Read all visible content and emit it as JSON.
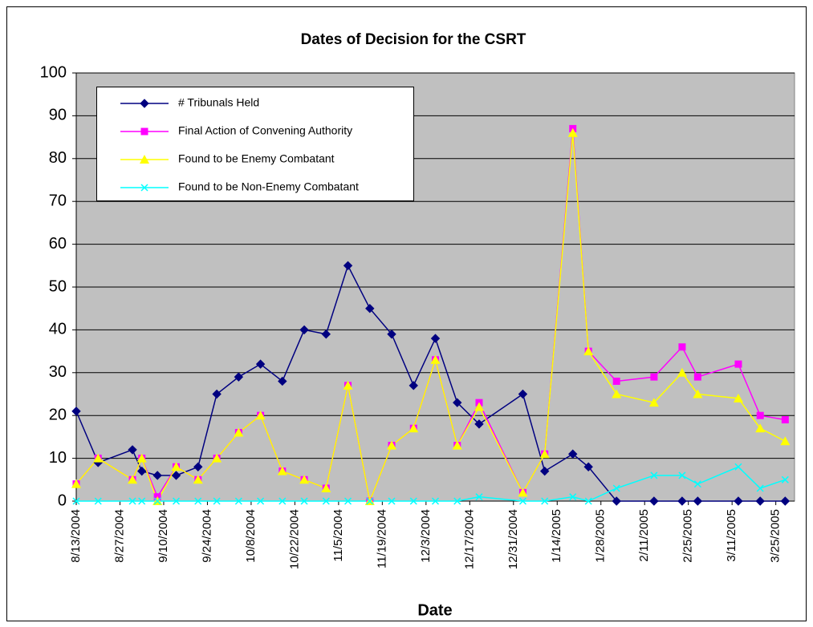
{
  "chart_data": {
    "type": "line",
    "title": "Dates of Decision for the CSRT",
    "x_label": "Date",
    "x": [
      "8/13/2004",
      "8/20/2004",
      "8/31/2004",
      "9/3/2004",
      "9/8/2004",
      "9/14/2004",
      "9/21/2004",
      "9/27/2004",
      "10/4/2004",
      "10/11/2004",
      "10/18/2004",
      "10/25/2004",
      "11/1/2004",
      "11/8/2004",
      "11/15/2004",
      "11/22/2004",
      "11/29/2004",
      "12/6/2004",
      "12/13/2004",
      "12/20/2004",
      "1/3/2005",
      "1/10/2005",
      "1/19/2005",
      "1/24/2005",
      "2/2/2005",
      "2/14/2005",
      "2/23/2005",
      "2/28/2005",
      "3/13/2005",
      "3/20/2005",
      "3/28/2005"
    ],
    "series": [
      {
        "name": "# Tribunals Held",
        "color": "#000080",
        "marker": "diamond",
        "values": [
          21,
          9,
          12,
          7,
          6,
          6,
          8,
          25,
          29,
          32,
          28,
          40,
          39,
          55,
          45,
          39,
          27,
          38,
          23,
          18,
          25,
          7,
          11,
          8,
          0,
          0,
          0,
          0,
          0,
          0,
          0
        ]
      },
      {
        "name": "Final Action of Convening Authority",
        "color": "#ff00ff",
        "marker": "square",
        "values": [
          4,
          10,
          5,
          10,
          1,
          8,
          5,
          10,
          16,
          20,
          7,
          5,
          3,
          27,
          0,
          13,
          17,
          33,
          13,
          23,
          2,
          11,
          87,
          35,
          28,
          29,
          36,
          29,
          32,
          20,
          19
        ]
      },
      {
        "name": "Found to be Enemy Combatant",
        "color": "#ffff00",
        "marker": "triangle",
        "values": [
          4,
          10,
          5,
          10,
          0,
          8,
          5,
          10,
          16,
          20,
          7,
          5,
          3,
          27,
          0,
          13,
          17,
          33,
          13,
          22,
          2,
          11,
          86,
          35,
          25,
          23,
          30,
          25,
          24,
          17,
          14
        ]
      },
      {
        "name": "Found to be Non-Enemy Combatant",
        "color": "#00ffff",
        "marker": "x",
        "values": [
          0,
          0,
          0,
          0,
          0,
          0,
          0,
          0,
          0,
          0,
          0,
          0,
          0,
          0,
          0,
          0,
          0,
          0,
          0,
          1,
          0,
          0,
          1,
          0,
          3,
          6,
          6,
          4,
          8,
          3,
          5
        ]
      }
    ],
    "xlim": [
      "8/13/2004",
      "3/31/2005"
    ],
    "xticks": [
      "8/13/2004",
      "8/27/2004",
      "9/10/2004",
      "9/24/2004",
      "10/8/2004",
      "10/22/2004",
      "11/5/2004",
      "11/19/2004",
      "12/3/2004",
      "12/17/2004",
      "12/31/2004",
      "1/14/2005",
      "1/28/2005",
      "2/11/2005",
      "2/25/2005",
      "3/11/2005",
      "3/25/2005"
    ],
    "ylim": [
      0,
      100
    ],
    "yticks": [
      0,
      10,
      20,
      30,
      40,
      50,
      60,
      70,
      80,
      90,
      100
    ],
    "grid": true,
    "legend": "upper left"
  }
}
